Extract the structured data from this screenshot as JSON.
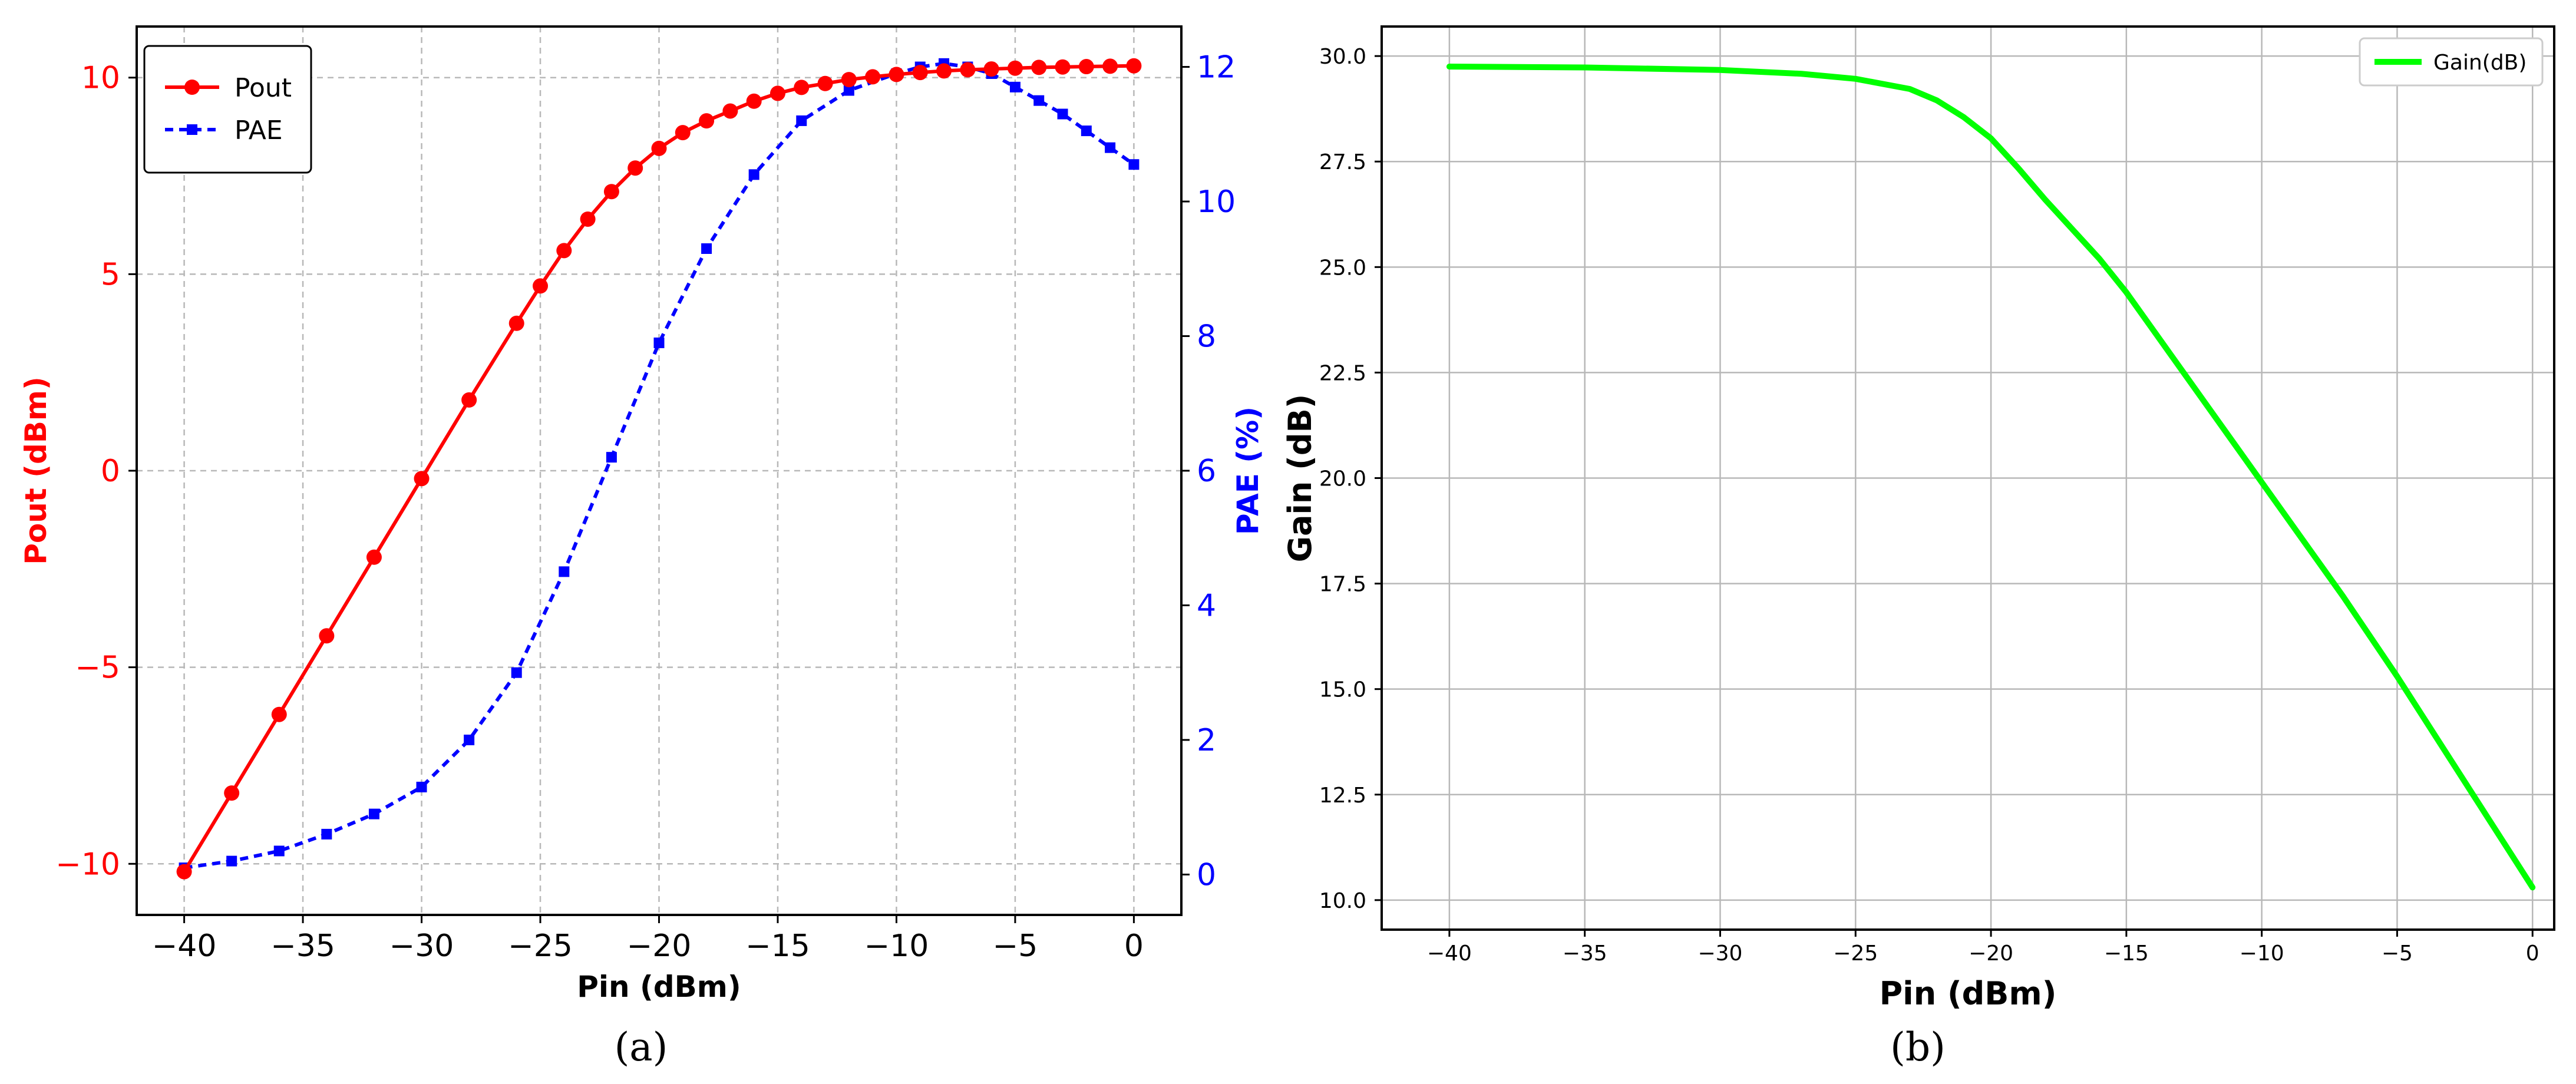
{
  "chart_data": [
    {
      "panel": "a",
      "type": "line",
      "caption": "(a)",
      "xlabel": "Pin (dBm)",
      "ylabel": "Pout (dBm)",
      "y2label": "PAE (%)",
      "xlim": [
        -42,
        2
      ],
      "ylim": [
        -11.3,
        11.3
      ],
      "y2lim": [
        -0.6,
        12.6
      ],
      "xticks": [
        -40,
        -35,
        -30,
        -25,
        -20,
        -15,
        -10,
        -5,
        0
      ],
      "yticks": [
        -10,
        -5,
        0,
        5,
        10
      ],
      "y2ticks": [
        0,
        2,
        4,
        6,
        8,
        10,
        12
      ],
      "grid": true,
      "legend_position": "top-left",
      "colors": {
        "pout": "#ff0000",
        "pae": "#0000ff"
      },
      "series": [
        {
          "name": "Pout",
          "axis": "left",
          "color": "#ff0000",
          "marker": "circle",
          "points": [
            [
              -40,
              -10.2
            ],
            [
              -38,
              -8.2
            ],
            [
              -36,
              -6.2
            ],
            [
              -34,
              -4.2
            ],
            [
              -32,
              -2.2
            ],
            [
              -30,
              -0.2
            ],
            [
              -28,
              1.8
            ],
            [
              -26,
              3.75
            ],
            [
              -25,
              4.7
            ],
            [
              -24,
              5.6
            ],
            [
              -23,
              6.4
            ],
            [
              -22,
              7.1
            ],
            [
              -21,
              7.7
            ],
            [
              -20,
              8.2
            ],
            [
              -19,
              8.6
            ],
            [
              -18,
              8.9
            ],
            [
              -17,
              9.15
            ],
            [
              -16,
              9.4
            ],
            [
              -15,
              9.6
            ],
            [
              -14,
              9.75
            ],
            [
              -13,
              9.85
            ],
            [
              -12,
              9.95
            ],
            [
              -11,
              10.02
            ],
            [
              -10,
              10.08
            ],
            [
              -9,
              10.13
            ],
            [
              -8,
              10.17
            ],
            [
              -7,
              10.2
            ],
            [
              -6,
              10.22
            ],
            [
              -5,
              10.24
            ],
            [
              -4,
              10.26
            ],
            [
              -3,
              10.27
            ],
            [
              -2,
              10.28
            ],
            [
              -1,
              10.29
            ],
            [
              0,
              10.3
            ]
          ]
        },
        {
          "name": "PAE",
          "axis": "right",
          "color": "#0000ff",
          "marker": "square",
          "dashed": true,
          "points": [
            [
              -40,
              0.1
            ],
            [
              -38,
              0.2
            ],
            [
              -36,
              0.35
            ],
            [
              -34,
              0.6
            ],
            [
              -32,
              0.9
            ],
            [
              -30,
              1.3
            ],
            [
              -28,
              2.0
            ],
            [
              -26,
              3.0
            ],
            [
              -24,
              4.5
            ],
            [
              -22,
              6.2
            ],
            [
              -20,
              7.9
            ],
            [
              -18,
              9.3
            ],
            [
              -16,
              10.4
            ],
            [
              -14,
              11.2
            ],
            [
              -12,
              11.65
            ],
            [
              -10,
              11.9
            ],
            [
              -9,
              12.0
            ],
            [
              -8,
              12.05
            ],
            [
              -7,
              12.0
            ],
            [
              -6,
              11.9
            ],
            [
              -5,
              11.7
            ],
            [
              -4,
              11.5
            ],
            [
              -3,
              11.3
            ],
            [
              -2,
              11.05
            ],
            [
              -1,
              10.8
            ],
            [
              0,
              10.55
            ]
          ]
        }
      ]
    },
    {
      "panel": "b",
      "type": "line",
      "caption": "(b)",
      "xlabel": "Pin (dBm)",
      "ylabel": "Gain (dB)",
      "xlim": [
        -42.5,
        0.8
      ],
      "ylim": [
        9.3,
        30.7
      ],
      "xticks": [
        -40,
        -35,
        -30,
        -25,
        -20,
        -15,
        -10,
        -5,
        0
      ],
      "yticks": [
        10.0,
        12.5,
        15.0,
        17.5,
        20.0,
        22.5,
        25.0,
        27.5,
        30.0
      ],
      "ytick_labels": [
        "10.0",
        "12.5",
        "15.0",
        "17.5",
        "20.0",
        "22.5",
        "25.0",
        "27.5",
        "30.0"
      ],
      "grid": true,
      "legend_position": "top-right",
      "series": [
        {
          "name": "Gain(dB)",
          "color": "#00ff00",
          "points": [
            [
              -40,
              29.75
            ],
            [
              -35,
              29.73
            ],
            [
              -30,
              29.67
            ],
            [
              -27,
              29.58
            ],
            [
              -25,
              29.46
            ],
            [
              -23,
              29.22
            ],
            [
              -22,
              28.95
            ],
            [
              -21,
              28.55
            ],
            [
              -20,
              28.05
            ],
            [
              -19,
              27.35
            ],
            [
              -18,
              26.6
            ],
            [
              -17,
              25.9
            ],
            [
              -16,
              25.2
            ],
            [
              -15,
              24.4
            ],
            [
              -14,
              23.5
            ],
            [
              -13,
              22.6
            ],
            [
              -12,
              21.7
            ],
            [
              -11,
              20.8
            ],
            [
              -10,
              19.9
            ],
            [
              -9,
              19.0
            ],
            [
              -8,
              18.1
            ],
            [
              -7,
              17.2
            ],
            [
              -6,
              16.25
            ],
            [
              -5,
              15.3
            ],
            [
              -4,
              14.3
            ],
            [
              -3,
              13.3
            ],
            [
              -2,
              12.3
            ],
            [
              -1,
              11.3
            ],
            [
              0,
              10.3
            ]
          ]
        }
      ]
    }
  ]
}
